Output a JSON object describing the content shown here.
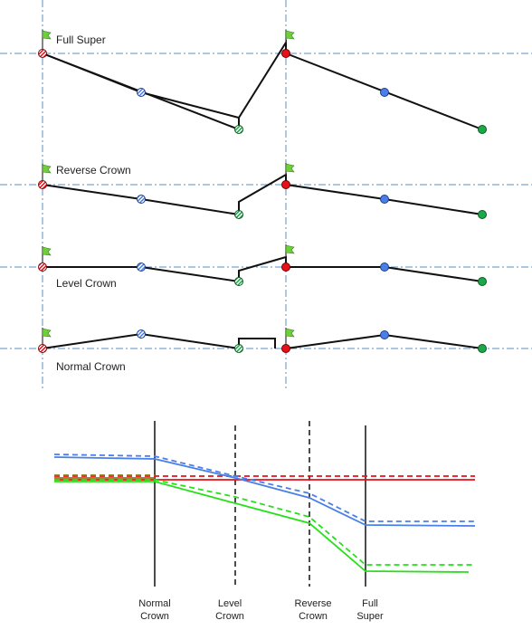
{
  "upper_diagram": {
    "rows": [
      {
        "label": "Full Super"
      },
      {
        "label": "Reverse Crown"
      },
      {
        "label": "Level Crown"
      },
      {
        "label": "Normal Crown"
      }
    ]
  },
  "lower_diagram": {
    "stations": [
      {
        "line1": "Normal",
        "line2": "Crown",
        "style": "solid"
      },
      {
        "line1": "Level",
        "line2": "Crown",
        "style": "dashed"
      },
      {
        "line1": "Reverse",
        "line2": "Crown",
        "style": "dashed"
      },
      {
        "line1": "Full",
        "line2": "Super",
        "style": "solid"
      }
    ],
    "line_colors": {
      "red": "#e8111a",
      "blue": "#4a7fe8",
      "green": "#26e01a",
      "olive": "#8a7a10"
    }
  },
  "colors": {
    "axis": "#5a8fc4",
    "profile": "#111111",
    "red": "#e8111a",
    "blue": "#4a7fe8",
    "green": "#1aa84a",
    "flag": "#6fcf3a"
  }
}
